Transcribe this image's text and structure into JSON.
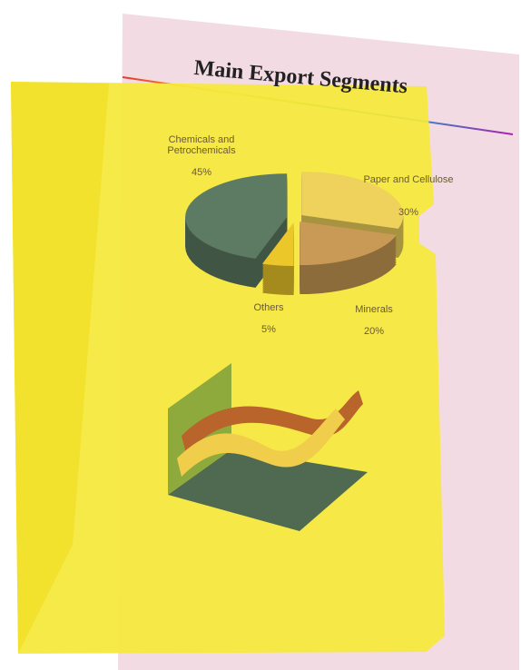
{
  "chart_data": {
    "type": "pie",
    "title": "Main Export Segments",
    "categories": [
      "Chemicals and Petrochemicals",
      "Paper and Cellulose",
      "Minerals",
      "Others"
    ],
    "values": [
      45,
      30,
      20,
      5
    ],
    "value_labels": [
      "45%",
      "30%",
      "20%",
      "5%"
    ],
    "colors": [
      "#5d7a62",
      "#efd25c",
      "#c99a55",
      "#ecc72a"
    ]
  }
}
